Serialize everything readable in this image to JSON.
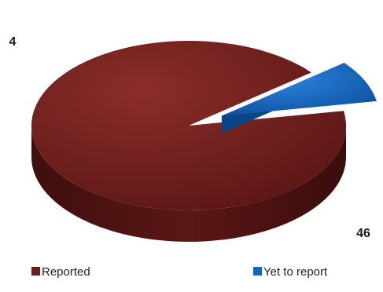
{
  "chart_data": {
    "type": "pie",
    "style": "3d-exploded",
    "categories": [
      "Reported",
      "Yet to report"
    ],
    "values": [
      46,
      4
    ],
    "colors": [
      "#6e1f1d",
      "#1565c0"
    ],
    "data_labels": [
      "46",
      "4"
    ],
    "legend": {
      "position": "bottom",
      "entries": [
        "Reported",
        "Yet to report"
      ]
    }
  }
}
